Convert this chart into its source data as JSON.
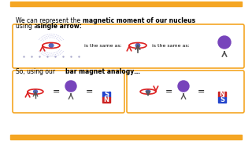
{
  "bg_color": "#ffffff",
  "top_bar_color": "#f5a623",
  "bottom_bar_color": "#f5a623",
  "box_color": "#f5a623",
  "text_color": "#000000",
  "title_line1_normal": "We can represent the ",
  "title_line1_bold": "magnetic moment of our nucleus",
  "title_line2_normal": "using a ",
  "title_line2_bold": "single arrow:",
  "subtitle": "So, using our ",
  "subtitle_bold": "bar magnet analogy…",
  "nucleus_color": "#4444cc",
  "orbit_color": "#dd2222",
  "arrow_color": "#dd2222",
  "ball_color": "#7744bb",
  "stick_color": "#555555",
  "magnet_s_color": "#2244cc",
  "magnet_n_color": "#cc2222",
  "magnet_text_color": "#ffffff"
}
